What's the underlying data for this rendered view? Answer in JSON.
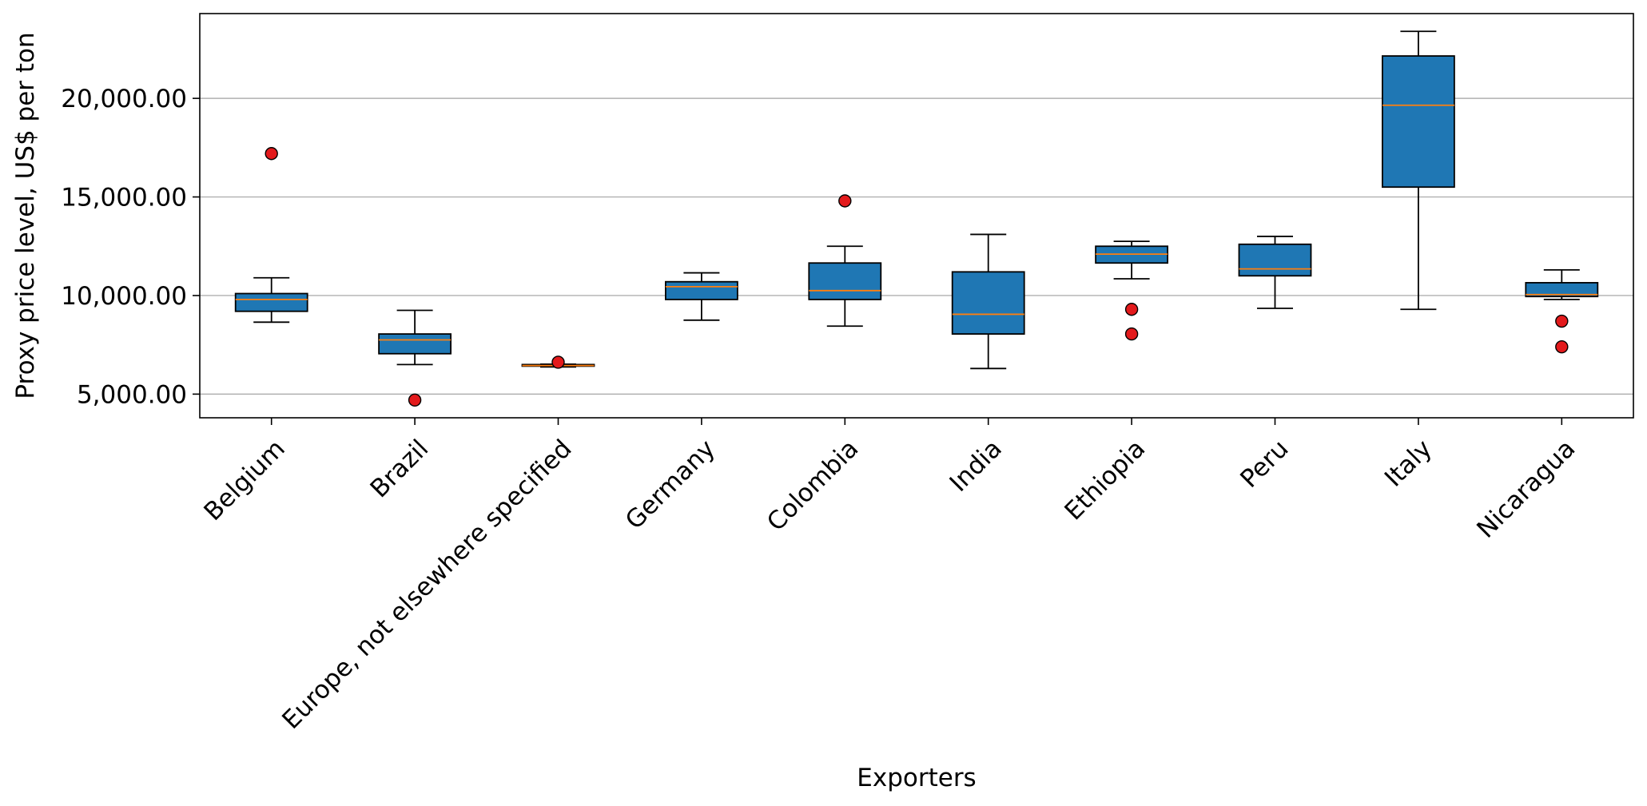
{
  "chart_data": {
    "type": "box",
    "title": "",
    "xlabel": "Exporters",
    "ylabel": "Proxy price level, US$ per ton",
    "ylim": [
      3800,
      24300
    ],
    "yticks": [
      5000,
      10000,
      15000,
      20000
    ],
    "ytick_labels": [
      "5,000.00",
      "10,000.00",
      "15,000.00",
      "20,000.00"
    ],
    "grid": "y",
    "categories": [
      "Belgium",
      "Brazil",
      "Europe, not elsewhere specified",
      "Germany",
      "Colombia",
      "India",
      "Ethiopia",
      "Peru",
      "Italy",
      "Nicaragua"
    ],
    "boxes": [
      {
        "whisker_low": 8650,
        "q1": 9200,
        "median": 9800,
        "q3": 10100,
        "whisker_high": 10900,
        "outliers": [
          17200
        ]
      },
      {
        "whisker_low": 6500,
        "q1": 7050,
        "median": 7750,
        "q3": 8050,
        "whisker_high": 9250,
        "outliers": [
          4700
        ]
      },
      {
        "whisker_low": 6380,
        "q1": 6420,
        "median": 6450,
        "q3": 6500,
        "whisker_high": 6520,
        "outliers": [
          6620
        ]
      },
      {
        "whisker_low": 8750,
        "q1": 9800,
        "median": 10450,
        "q3": 10700,
        "whisker_high": 11150,
        "outliers": []
      },
      {
        "whisker_low": 8450,
        "q1": 9800,
        "median": 10250,
        "q3": 11650,
        "whisker_high": 12500,
        "outliers": [
          14800
        ]
      },
      {
        "whisker_low": 6300,
        "q1": 8050,
        "median": 9050,
        "q3": 11200,
        "whisker_high": 13100,
        "outliers": []
      },
      {
        "whisker_low": 10850,
        "q1": 11650,
        "median": 12100,
        "q3": 12500,
        "whisker_high": 12750,
        "outliers": [
          9300,
          8050
        ]
      },
      {
        "whisker_low": 9350,
        "q1": 11000,
        "median": 11350,
        "q3": 12600,
        "whisker_high": 13000,
        "outliers": []
      },
      {
        "whisker_low": 9300,
        "q1": 15500,
        "median": 19650,
        "q3": 22150,
        "whisker_high": 23400,
        "outliers": []
      },
      {
        "whisker_low": 9800,
        "q1": 9950,
        "median": 10050,
        "q3": 10650,
        "whisker_high": 11300,
        "outliers": [
          8700,
          7400
        ]
      }
    ],
    "colors": {
      "box_fill": "#1f77b4",
      "box_edge": "#000000",
      "median": "#ff7f0e",
      "outlier_fill": "#e31a1c",
      "grid": "#b0b0b0"
    }
  }
}
